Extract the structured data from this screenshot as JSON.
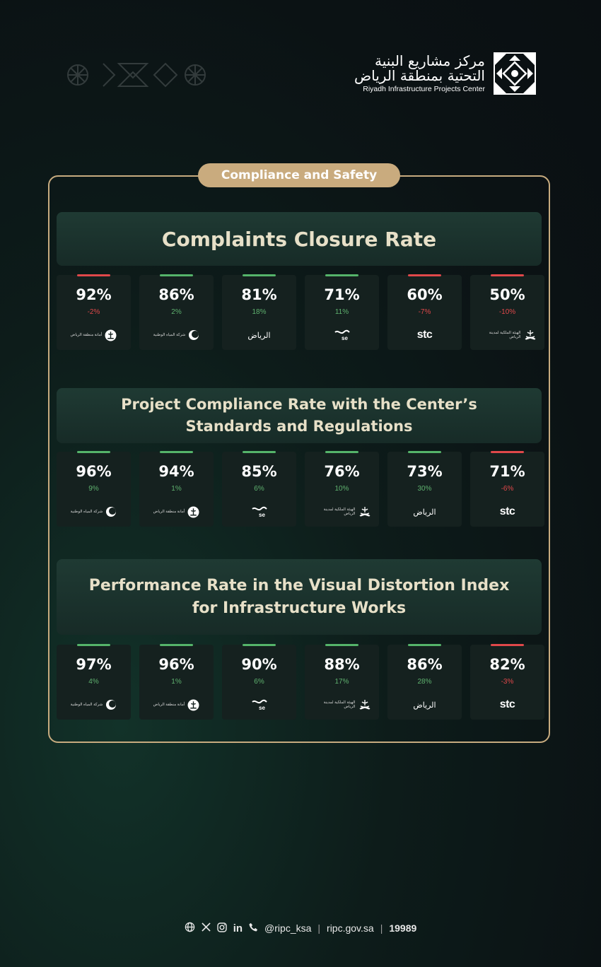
{
  "header": {
    "logo_ar_line1": "مركز مشاريع البنية",
    "logo_ar_line2": "التحتية بمنطقة الرياض",
    "logo_en": "Riyadh Infrastructure Projects Center"
  },
  "category_label": "Compliance and Safety",
  "sections": [
    {
      "title_line1": "Complaints Closure Rate",
      "title_line2": "",
      "cards": [
        {
          "value": "92%",
          "change": "-2%",
          "trend": "down",
          "org_icon": "riyadh-municipality-emblem-icon",
          "org_label": "أمانة منطقة الرياض"
        },
        {
          "value": "86%",
          "change": "2%",
          "trend": "up",
          "org_icon": "national-water-company-icon",
          "org_label": "شركة المياه الوطنية"
        },
        {
          "value": "81%",
          "change": "18%",
          "trend": "up",
          "org_icon": "riyadh-script-logo-icon",
          "org_label": "الرياض"
        },
        {
          "value": "71%",
          "change": "11%",
          "trend": "up",
          "org_icon": "saudi-electricity-icon",
          "org_label": "se"
        },
        {
          "value": "60%",
          "change": "-7%",
          "trend": "down",
          "org_icon": "stc-logo-icon",
          "org_label": "stc"
        },
        {
          "value": "50%",
          "change": "-10%",
          "trend": "down",
          "org_icon": "royal-commission-riyadh-icon",
          "org_label": "الهيئة الملكية لمدينة الرياض"
        }
      ]
    },
    {
      "title_line1": "Project Compliance Rate with the Center’s",
      "title_line2": "Standards and Regulations",
      "cards": [
        {
          "value": "96%",
          "change": "9%",
          "trend": "up",
          "org_icon": "national-water-company-icon",
          "org_label": "شركة المياه الوطنية"
        },
        {
          "value": "94%",
          "change": "1%",
          "trend": "up",
          "org_icon": "riyadh-municipality-emblem-icon",
          "org_label": "أمانة منطقة الرياض"
        },
        {
          "value": "85%",
          "change": "6%",
          "trend": "up",
          "org_icon": "saudi-electricity-icon",
          "org_label": "se"
        },
        {
          "value": "76%",
          "change": "10%",
          "trend": "up",
          "org_icon": "royal-commission-riyadh-icon",
          "org_label": "الهيئة الملكية لمدينة الرياض"
        },
        {
          "value": "73%",
          "change": "30%",
          "trend": "up",
          "org_icon": "riyadh-script-logo-icon",
          "org_label": "الرياض"
        },
        {
          "value": "71%",
          "change": "-6%",
          "trend": "down",
          "org_icon": "stc-logo-icon",
          "org_label": "stc"
        }
      ]
    },
    {
      "title_line1": "Performance Rate in the Visual Distortion Index",
      "title_line2": "for Infrastructure Works",
      "cards": [
        {
          "value": "97%",
          "change": "4%",
          "trend": "up",
          "org_icon": "national-water-company-icon",
          "org_label": "شركة المياه الوطنية"
        },
        {
          "value": "96%",
          "change": "1%",
          "trend": "up",
          "org_icon": "riyadh-municipality-emblem-icon",
          "org_label": "أمانة منطقة الرياض"
        },
        {
          "value": "90%",
          "change": "6%",
          "trend": "up",
          "org_icon": "saudi-electricity-icon",
          "org_label": "se"
        },
        {
          "value": "88%",
          "change": "17%",
          "trend": "up",
          "org_icon": "royal-commission-riyadh-icon",
          "org_label": "الهيئة الملكية لمدينة الرياض"
        },
        {
          "value": "86%",
          "change": "28%",
          "trend": "up",
          "org_icon": "riyadh-script-logo-icon",
          "org_label": "الرياض"
        },
        {
          "value": "82%",
          "change": "-3%",
          "trend": "down",
          "org_icon": "stc-logo-icon",
          "org_label": "stc"
        }
      ]
    }
  ],
  "footer": {
    "icons": [
      "globe-icon",
      "x-icon",
      "instagram-icon",
      "linkedin-icon",
      "phone-icon"
    ],
    "handle": "@ripc_ksa",
    "website": "ripc.gov.sa",
    "phone": "19989"
  },
  "colors": {
    "accent": "#c9ab7e",
    "positive": "#55b46a",
    "negative": "#e0484a"
  }
}
